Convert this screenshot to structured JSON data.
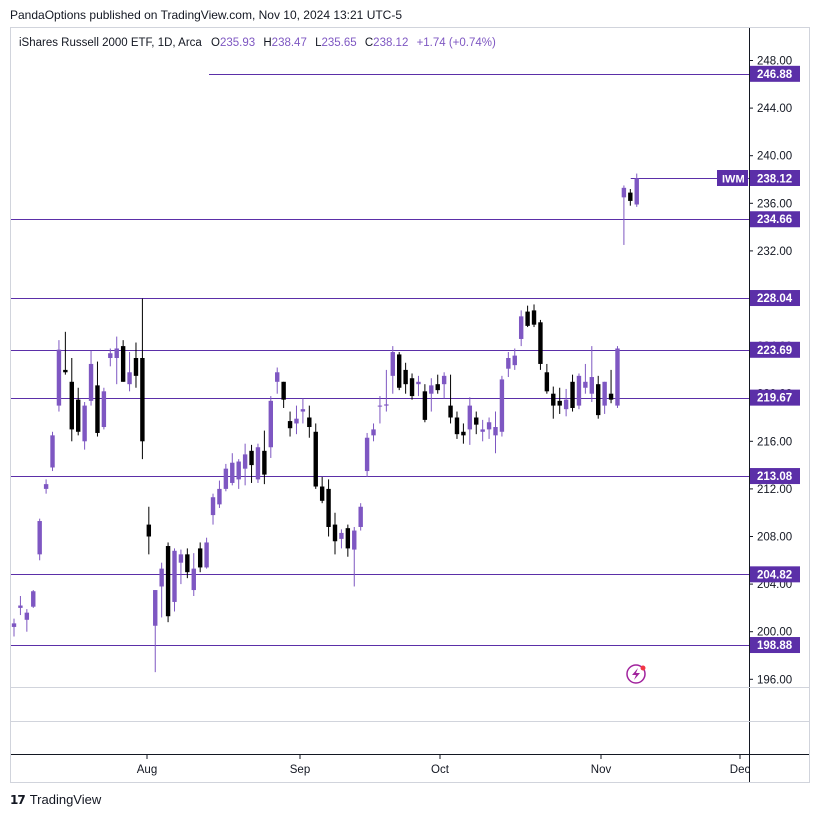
{
  "header": {
    "published": "PandaOptions published on TradingView.com, Nov 10, 2024 13:21 UTC-5"
  },
  "footer": {
    "brand": "TradingView"
  },
  "chart_data": {
    "type": "candlestick",
    "symbol_line": {
      "name": "iShares Russell 2000 ETF, 1D, Arca",
      "o_label": "O",
      "o": "235.93",
      "h_label": "H",
      "h": "238.47",
      "l_label": "L",
      "l": "235.65",
      "c_label": "C",
      "c": "238.12",
      "change": "+1.74 (+0.74%)"
    },
    "ticker_badge": "IWM",
    "last_price_label": "238.12",
    "y_ticks": [
      "248.00",
      "244.00",
      "240.00",
      "236.00",
      "232.00",
      "228.00",
      "224.00",
      "220.00",
      "216.00",
      "212.00",
      "208.00",
      "204.00",
      "200.00",
      "196.00"
    ],
    "y_tick_values": [
      248,
      244,
      240,
      236,
      232,
      228,
      224,
      220,
      216,
      212,
      208,
      204,
      200,
      196
    ],
    "x_ticks": [
      "Aug",
      "Sep",
      "Oct",
      "Nov",
      "Dec"
    ],
    "horizontal_lines": [
      {
        "value": 246.88,
        "label": "246.88"
      },
      {
        "value": 234.66,
        "label": "234.66"
      },
      {
        "value": 228.04,
        "label": "228.04"
      },
      {
        "value": 223.69,
        "label": "223.69"
      },
      {
        "value": 219.67,
        "label": "219.67"
      },
      {
        "value": 213.08,
        "label": "213.08"
      },
      {
        "value": 204.82,
        "label": "204.82"
      },
      {
        "value": 198.88,
        "label": "198.88"
      }
    ],
    "colors": {
      "up": "#7e57c2",
      "down": "#000000",
      "level": "#5b2fa8",
      "grid": "#ffffff",
      "axis_text": "#131722"
    },
    "candles": [
      {
        "o": 200.4,
        "h": 201.1,
        "l": 199.6,
        "c": 200.7
      },
      {
        "o": 202.0,
        "h": 203.0,
        "l": 201.4,
        "c": 202.2
      },
      {
        "o": 201.0,
        "h": 201.9,
        "l": 200.0,
        "c": 201.6
      },
      {
        "o": 202.1,
        "h": 203.5,
        "l": 202.0,
        "c": 203.4
      },
      {
        "o": 206.5,
        "h": 209.5,
        "l": 206.0,
        "c": 209.3
      },
      {
        "o": 212.0,
        "h": 212.8,
        "l": 211.6,
        "c": 212.4
      },
      {
        "o": 213.8,
        "h": 216.8,
        "l": 213.5,
        "c": 216.5
      },
      {
        "o": 219.0,
        "h": 224.5,
        "l": 218.5,
        "c": 223.7
      },
      {
        "o": 222.0,
        "h": 225.2,
        "l": 221.6,
        "c": 221.8
      },
      {
        "o": 221.0,
        "h": 223.0,
        "l": 216.0,
        "c": 217.0
      },
      {
        "o": 219.5,
        "h": 220.5,
        "l": 216.5,
        "c": 216.8
      },
      {
        "o": 216.0,
        "h": 219.3,
        "l": 215.3,
        "c": 219.0
      },
      {
        "o": 219.4,
        "h": 223.6,
        "l": 219.0,
        "c": 222.5
      },
      {
        "o": 220.7,
        "h": 222.7,
        "l": 216.4,
        "c": 216.7
      },
      {
        "o": 217.2,
        "h": 220.5,
        "l": 217.0,
        "c": 220.2
      },
      {
        "o": 223.0,
        "h": 223.8,
        "l": 222.3,
        "c": 223.4
      },
      {
        "o": 223.0,
        "h": 224.8,
        "l": 220.8,
        "c": 223.8
      },
      {
        "o": 224.0,
        "h": 224.5,
        "l": 221.0,
        "c": 221.0
      },
      {
        "o": 220.8,
        "h": 223.5,
        "l": 220.2,
        "c": 221.8
      },
      {
        "o": 223.0,
        "h": 224.3,
        "l": 220.5,
        "c": 221.5
      },
      {
        "o": 223.0,
        "h": 228.0,
        "l": 214.5,
        "c": 216.0
      },
      {
        "o": 209.0,
        "h": 210.5,
        "l": 206.5,
        "c": 208.0
      },
      {
        "o": 200.5,
        "h": 203.5,
        "l": 196.6,
        "c": 203.5
      },
      {
        "o": 203.8,
        "h": 205.8,
        "l": 201.2,
        "c": 205.3
      },
      {
        "o": 207.2,
        "h": 207.5,
        "l": 200.8,
        "c": 201.3
      },
      {
        "o": 202.5,
        "h": 207.0,
        "l": 201.7,
        "c": 206.8
      },
      {
        "o": 205.8,
        "h": 206.9,
        "l": 204.0,
        "c": 206.5
      },
      {
        "o": 206.5,
        "h": 207.0,
        "l": 204.5,
        "c": 205.0
      },
      {
        "o": 203.5,
        "h": 206.6,
        "l": 203.0,
        "c": 205.3
      },
      {
        "o": 207.0,
        "h": 207.5,
        "l": 205.0,
        "c": 205.4
      },
      {
        "o": 205.4,
        "h": 207.9,
        "l": 205.3,
        "c": 207.5
      },
      {
        "o": 209.8,
        "h": 211.6,
        "l": 209.0,
        "c": 211.3
      },
      {
        "o": 210.7,
        "h": 212.7,
        "l": 210.4,
        "c": 212.0
      },
      {
        "o": 212.0,
        "h": 214.1,
        "l": 211.8,
        "c": 213.7
      },
      {
        "o": 212.5,
        "h": 215.0,
        "l": 212.3,
        "c": 214.2
      },
      {
        "o": 212.8,
        "h": 214.5,
        "l": 212.0,
        "c": 214.3
      },
      {
        "o": 213.7,
        "h": 215.8,
        "l": 212.3,
        "c": 214.9
      },
      {
        "o": 215.2,
        "h": 215.7,
        "l": 212.5,
        "c": 214.0
      },
      {
        "o": 212.8,
        "h": 215.8,
        "l": 212.5,
        "c": 215.5
      },
      {
        "o": 215.2,
        "h": 216.9,
        "l": 212.4,
        "c": 213.2
      },
      {
        "o": 215.5,
        "h": 219.8,
        "l": 214.6,
        "c": 219.4
      },
      {
        "o": 221.0,
        "h": 222.2,
        "l": 220.0,
        "c": 221.8
      },
      {
        "o": 221.0,
        "h": 221.0,
        "l": 218.8,
        "c": 219.5
      },
      {
        "o": 217.7,
        "h": 218.5,
        "l": 216.4,
        "c": 217.1
      },
      {
        "o": 217.5,
        "h": 219.0,
        "l": 216.6,
        "c": 217.9
      },
      {
        "o": 218.5,
        "h": 219.6,
        "l": 217.5,
        "c": 218.7
      },
      {
        "o": 218.0,
        "h": 219.0,
        "l": 216.3,
        "c": 217.2
      },
      {
        "o": 216.8,
        "h": 217.5,
        "l": 212.0,
        "c": 212.2
      },
      {
        "o": 212.2,
        "h": 213.0,
        "l": 210.8,
        "c": 211.0
      },
      {
        "o": 212.0,
        "h": 212.8,
        "l": 208.0,
        "c": 208.8
      },
      {
        "o": 209.0,
        "h": 210.0,
        "l": 206.5,
        "c": 207.6
      },
      {
        "o": 207.8,
        "h": 208.6,
        "l": 207.0,
        "c": 208.3
      },
      {
        "o": 208.7,
        "h": 209.0,
        "l": 206.3,
        "c": 207.0
      },
      {
        "o": 206.9,
        "h": 208.8,
        "l": 203.8,
        "c": 208.5
      },
      {
        "o": 208.8,
        "h": 210.8,
        "l": 208.5,
        "c": 210.5
      },
      {
        "o": 213.5,
        "h": 216.7,
        "l": 213.0,
        "c": 216.3
      },
      {
        "o": 216.5,
        "h": 217.5,
        "l": 216.0,
        "c": 217.0
      },
      {
        "o": 219.0,
        "h": 219.8,
        "l": 217.5,
        "c": 219.0
      },
      {
        "o": 219.0,
        "h": 222.0,
        "l": 218.5,
        "c": 219.1
      },
      {
        "o": 221.5,
        "h": 224.0,
        "l": 220.0,
        "c": 223.5
      },
      {
        "o": 223.3,
        "h": 223.5,
        "l": 220.3,
        "c": 220.5
      },
      {
        "o": 222.0,
        "h": 222.6,
        "l": 220.0,
        "c": 220.8
      },
      {
        "o": 221.3,
        "h": 221.7,
        "l": 219.5,
        "c": 219.8
      },
      {
        "o": 220.8,
        "h": 221.5,
        "l": 219.8,
        "c": 221.0
      },
      {
        "o": 220.2,
        "h": 220.8,
        "l": 217.6,
        "c": 217.8
      },
      {
        "o": 220.0,
        "h": 221.3,
        "l": 218.5,
        "c": 220.7
      },
      {
        "o": 220.8,
        "h": 221.6,
        "l": 220.0,
        "c": 220.3
      },
      {
        "o": 220.8,
        "h": 221.8,
        "l": 219.6,
        "c": 221.5
      },
      {
        "o": 219.0,
        "h": 221.6,
        "l": 217.5,
        "c": 218.0
      },
      {
        "o": 218.0,
        "h": 218.5,
        "l": 216.2,
        "c": 216.6
      },
      {
        "o": 216.8,
        "h": 217.5,
        "l": 215.8,
        "c": 216.5
      },
      {
        "o": 217.0,
        "h": 219.7,
        "l": 215.7,
        "c": 219.0
      },
      {
        "o": 218.0,
        "h": 218.5,
        "l": 216.6,
        "c": 217.4
      },
      {
        "o": 216.8,
        "h": 217.8,
        "l": 216.0,
        "c": 217.0
      },
      {
        "o": 217.0,
        "h": 218.0,
        "l": 216.2,
        "c": 217.6
      },
      {
        "o": 216.5,
        "h": 218.5,
        "l": 215.0,
        "c": 217.2
      },
      {
        "o": 216.8,
        "h": 221.5,
        "l": 216.4,
        "c": 221.2
      },
      {
        "o": 222.1,
        "h": 223.5,
        "l": 221.4,
        "c": 223.0
      },
      {
        "o": 222.4,
        "h": 223.8,
        "l": 222.0,
        "c": 223.2
      },
      {
        "o": 224.6,
        "h": 227.0,
        "l": 224.0,
        "c": 226.5
      },
      {
        "o": 226.9,
        "h": 227.4,
        "l": 225.6,
        "c": 225.7
      },
      {
        "o": 227.0,
        "h": 227.5,
        "l": 225.6,
        "c": 225.8
      },
      {
        "o": 226.0,
        "h": 226.2,
        "l": 222.0,
        "c": 222.5
      },
      {
        "o": 221.8,
        "h": 222.5,
        "l": 220.0,
        "c": 220.2
      },
      {
        "o": 220.0,
        "h": 220.6,
        "l": 217.9,
        "c": 219.0
      },
      {
        "o": 219.4,
        "h": 220.5,
        "l": 218.3,
        "c": 219.0
      },
      {
        "o": 218.7,
        "h": 220.4,
        "l": 218.1,
        "c": 219.5
      },
      {
        "o": 221.0,
        "h": 221.6,
        "l": 218.5,
        "c": 218.8
      },
      {
        "o": 219.0,
        "h": 221.7,
        "l": 218.7,
        "c": 221.5
      },
      {
        "o": 220.5,
        "h": 222.5,
        "l": 220.0,
        "c": 221.0
      },
      {
        "o": 220.0,
        "h": 224.0,
        "l": 219.3,
        "c": 221.4
      },
      {
        "o": 220.8,
        "h": 221.5,
        "l": 217.9,
        "c": 218.2
      },
      {
        "o": 219.0,
        "h": 221.0,
        "l": 218.3,
        "c": 221.0
      },
      {
        "o": 220.0,
        "h": 222.0,
        "l": 219.2,
        "c": 219.5
      },
      {
        "o": 219.0,
        "h": 224.0,
        "l": 218.8,
        "c": 223.8
      },
      {
        "o": 236.5,
        "h": 237.5,
        "l": 232.5,
        "c": 237.3
      },
      {
        "o": 236.9,
        "h": 237.2,
        "l": 235.8,
        "c": 236.2
      },
      {
        "o": 235.9,
        "h": 238.5,
        "l": 235.7,
        "c": 238.1
      }
    ]
  }
}
